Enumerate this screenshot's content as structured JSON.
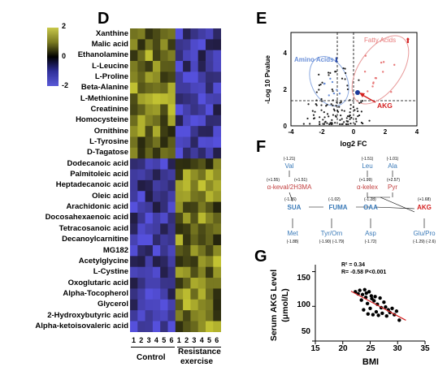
{
  "panel_d": {
    "letter": "D",
    "colorbar_ticks": [
      "2",
      "0",
      "-2"
    ],
    "rows": [
      "Xanthine",
      "Malic acid",
      "Ethanolamine",
      "L-Leucine",
      "L-Proline",
      "Beta-Alanine",
      "L-Methionine",
      "Creatinine",
      "Homocysteine",
      "Ornithine",
      "L-Tyrosine",
      "D-Tagatose",
      "Dodecanoic acid",
      "Palmitoleic acid",
      "Heptadecanoic acid",
      "Oleic acid",
      "Arachidonic acid",
      "Docosahexaenoic acid",
      "Tetracosanoic acid",
      "Decanoylcarnitine",
      "MG182",
      "Acetylglycine",
      "L-Cystine",
      "Oxoglutaric acid",
      "Alpha-Tocopherol",
      "Glycerol",
      "2-Hydroxybutyric acid",
      "Alpha-ketoisovaleric acid"
    ],
    "columns": [
      "1",
      "2",
      "3",
      "4",
      "5",
      "6",
      "1",
      "2",
      "3",
      "4",
      "5",
      "6"
    ],
    "group_control": "Control",
    "group_resistance_1": "Resistance",
    "group_resistance_2": "exercise"
  },
  "panel_e": {
    "letter": "E",
    "ylabel": "-Log 10 Pvalue",
    "xlabel": "log2 FC",
    "x_ticks": [
      "-4",
      "-2",
      "0",
      "2",
      "4"
    ],
    "y_ticks": [
      "0",
      "2",
      "4"
    ],
    "label_fatty": "Fatty Acids",
    "label_amino": "Amino Acids",
    "label_akg": "AKG",
    "colors": {
      "fatty": "#e87a7a",
      "amino": "#6a8fd8",
      "akg": "#d42020"
    }
  },
  "panel_f": {
    "letter": "F",
    "nodes": {
      "val": {
        "name": "Val",
        "fc": "(-1.21)"
      },
      "keval": {
        "name": "α-keval/2H3MA",
        "fc_left": "(+1.55)",
        "fc_right": "(+1.51)"
      },
      "leu": {
        "name": "Leu",
        "fc": "(-1.51)"
      },
      "ala": {
        "name": "Ala",
        "fc": "(-1.01)"
      },
      "kelex": {
        "name": "α-kelex",
        "fc": "(+1.99)"
      },
      "pyr": {
        "name": "Pyr",
        "fc": "(+2.57)"
      },
      "sua": {
        "name": "SUA",
        "fc": "(-1.26)"
      },
      "fuma": {
        "name": "FUMA",
        "fc": "(-1.02)"
      },
      "oaa": {
        "name": "OAA",
        "fc": "(-1.28)"
      },
      "akg": {
        "name": "AKG",
        "fc": "(+1.68)"
      },
      "met": {
        "name": "Met",
        "fc": "(-1.88)"
      },
      "tyrorn": {
        "name": "Tyr/Orn",
        "fc": "(-1.90) (-1.79)"
      },
      "asp": {
        "name": "Asp",
        "fc": "(-1.72)"
      },
      "glupro": {
        "name": "Glu/Pro",
        "fc": "(-1.29) (-2.6)"
      }
    }
  },
  "panel_g": {
    "letter": "G",
    "ylabel_1": "Serum AKG Level",
    "ylabel_2": "(μmol/L)",
    "xlabel": "BMI",
    "r2": "R² = 0.34",
    "r_p": "R= -0.58 P<0.001",
    "y_ticks": [
      "50",
      "100",
      "150"
    ],
    "x_ticks": [
      "15",
      "20",
      "25",
      "30",
      "35"
    ]
  },
  "chart_data": [
    {
      "type": "scatter",
      "title": "",
      "xlabel": "log2 FC",
      "ylabel": "-Log 10 Pvalue",
      "xlim": [
        -4,
        4
      ],
      "ylim": [
        0,
        5
      ],
      "points": [
        {
          "x": 0.3,
          "y": 1.8,
          "group": "AKG"
        }
      ]
    },
    {
      "type": "scatter",
      "title": "",
      "xlabel": "BMI",
      "ylabel": "Serum AKG Level (μmol/L)",
      "xlim": [
        15,
        35
      ],
      "ylim": [
        50,
        160
      ],
      "r2": 0.34,
      "r": -0.58,
      "p": "<0.001",
      "x": [
        22.3,
        22.8,
        23.1,
        23.4,
        23.6,
        23.8,
        24.0,
        24.2,
        24.3,
        24.5,
        24.6,
        24.8,
        25.0,
        25.2,
        25.3,
        25.5,
        25.7,
        25.9,
        26.1,
        26.3,
        26.5,
        26.8,
        27.0,
        27.2,
        27.5,
        27.8,
        28.0,
        28.3,
        28.6,
        29.0,
        29.4,
        29.8,
        30.3
      ],
      "y": [
        121,
        118,
        123,
        109,
        117,
        95,
        124,
        113,
        119,
        104,
        89,
        121,
        97,
        115,
        111,
        88,
        108,
        114,
        92,
        103,
        87,
        112,
        98,
        90,
        106,
        99,
        86,
        95,
        91,
        97,
        88,
        93,
        80
      ]
    }
  ]
}
